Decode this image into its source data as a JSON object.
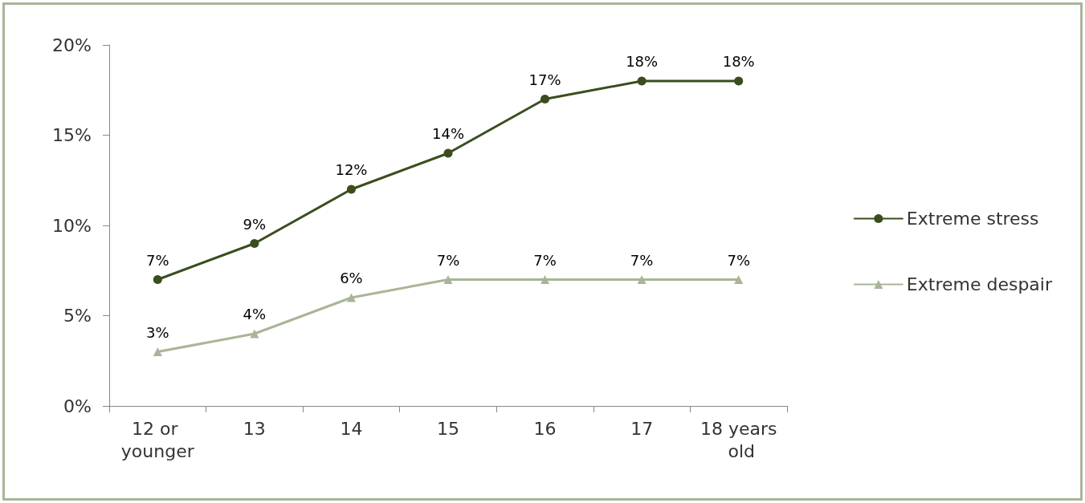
{
  "chart_data": {
    "type": "line",
    "categories": [
      "12 or younger",
      "13",
      "14",
      "15",
      "16",
      "17",
      "18 years old"
    ],
    "series": [
      {
        "name": "Extreme stress",
        "color": "#3b4d1e",
        "marker": "circle",
        "values": [
          7,
          9,
          12,
          14,
          17,
          18,
          18
        ],
        "value_labels": [
          "7%",
          "9%",
          "12%",
          "14%",
          "17%",
          "18%",
          "18%"
        ]
      },
      {
        "name": "Extreme despair",
        "color": "#a9b597",
        "marker": "triangle",
        "values": [
          3,
          4,
          6,
          7,
          7,
          7,
          7
        ],
        "value_labels": [
          "3%",
          "4%",
          "6%",
          "7%",
          "7%",
          "7%",
          "7%"
        ]
      }
    ],
    "ylim": [
      0,
      20
    ],
    "yticks": [
      {
        "value": 0,
        "label": "0%"
      },
      {
        "value": 5,
        "label": "5%"
      },
      {
        "value": 10,
        "label": "10%"
      },
      {
        "value": 15,
        "label": "15%"
      },
      {
        "value": 20,
        "label": "20%"
      }
    ],
    "grid": false,
    "legend": "right",
    "line_style": "solid"
  }
}
